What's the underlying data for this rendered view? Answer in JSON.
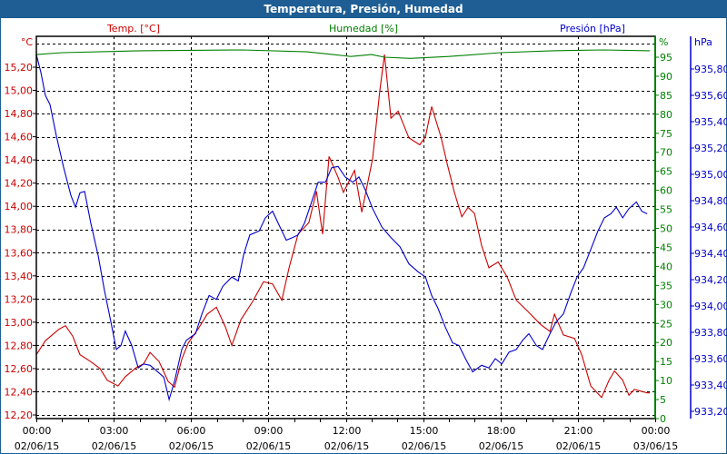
{
  "window": {
    "title": "Temperatura, Presión, Humedad"
  },
  "colors": {
    "temp": "#cc0000",
    "humidity": "#008000",
    "pressure": "#0000cc",
    "titlebar": "#1e5e94"
  },
  "chart_data": {
    "type": "line",
    "title": "Temperatura, Presión, Humedad",
    "series_labels": {
      "temp": "Temp. [°C]",
      "humidity": "Humedad [%]",
      "pressure": "Presión [hPa]"
    },
    "unit_labels": {
      "temp": "°C",
      "humidity": "%",
      "pressure": "hPa"
    },
    "x_ticks": [
      {
        "hour": 0,
        "time": "00:00",
        "date": "02/06/15"
      },
      {
        "hour": 3,
        "time": "03:00",
        "date": "02/06/15"
      },
      {
        "hour": 6,
        "time": "06:00",
        "date": "02/06/15"
      },
      {
        "hour": 9,
        "time": "09:00",
        "date": "02/06/15"
      },
      {
        "hour": 12,
        "time": "12:00",
        "date": "02/06/15"
      },
      {
        "hour": 15,
        "time": "15:00",
        "date": "02/06/15"
      },
      {
        "hour": 18,
        "time": "18:00",
        "date": "02/06/15"
      },
      {
        "hour": 21,
        "time": "21:00",
        "date": "02/06/15"
      },
      {
        "hour": 24,
        "time": "00:00",
        "date": "03/06/15"
      }
    ],
    "xlim": [
      0,
      24
    ],
    "temp_axis": {
      "ylim": [
        12.17,
        15.47
      ],
      "ticks": [
        12.2,
        12.4,
        12.6,
        12.8,
        13.0,
        13.2,
        13.4,
        13.6,
        13.8,
        14.0,
        14.2,
        14.4,
        14.6,
        14.8,
        15.0,
        15.2
      ],
      "tick_labels": [
        "12,20",
        "12,40",
        "12,60",
        "12,80",
        "13,00",
        "13,20",
        "13,40",
        "13,60",
        "13,80",
        "14,00",
        "14,20",
        "14,40",
        "14,60",
        "14,80",
        "15,00",
        "15,20"
      ]
    },
    "humidity_axis": {
      "ylim": [
        0,
        95.2
      ],
      "ticks": [
        0,
        5,
        10,
        15,
        20,
        25,
        30,
        35,
        40,
        45,
        50,
        55,
        60,
        65,
        70,
        75,
        80,
        85,
        90,
        95
      ],
      "tick_labels": [
        "0",
        "5",
        "10",
        "15",
        "20",
        "25",
        "30",
        "35",
        "40",
        "45",
        "50",
        "55",
        "60",
        "65",
        "70",
        "75",
        "80",
        "85",
        "90",
        "95"
      ]
    },
    "pressure_axis": {
      "ylim": [
        933.16,
        935.91
      ],
      "ticks": [
        933.2,
        933.4,
        933.6,
        933.8,
        934.0,
        934.2,
        934.4,
        934.6,
        934.8,
        935.0,
        935.2,
        935.4,
        935.6,
        935.8
      ],
      "tick_labels": [
        "933,20",
        "933,40",
        "933,60",
        "933,80",
        "934,00",
        "934,20",
        "934,40",
        "934,60",
        "934,80",
        "935,00",
        "935,20",
        "935,40",
        "935,60",
        "935,80"
      ]
    },
    "grid": true,
    "series": [
      {
        "name": "Temp. [°C]",
        "axis": "temp",
        "points": [
          [
            0,
            12.72
          ],
          [
            0.35,
            12.84
          ],
          [
            0.88,
            12.94
          ],
          [
            1.13,
            12.97
          ],
          [
            1.41,
            12.88
          ],
          [
            1.69,
            12.72
          ],
          [
            2.11,
            12.66
          ],
          [
            2.47,
            12.6
          ],
          [
            2.75,
            12.5
          ],
          [
            3.17,
            12.45
          ],
          [
            3.45,
            12.53
          ],
          [
            3.88,
            12.61
          ],
          [
            4.16,
            12.64
          ],
          [
            4.41,
            12.74
          ],
          [
            4.76,
            12.66
          ],
          [
            5.11,
            12.49
          ],
          [
            5.36,
            12.44
          ],
          [
            5.64,
            12.68
          ],
          [
            5.89,
            12.82
          ],
          [
            6.27,
            12.94
          ],
          [
            6.63,
            13.07
          ],
          [
            6.98,
            13.13
          ],
          [
            7.33,
            12.96
          ],
          [
            7.58,
            12.8
          ],
          [
            7.93,
            13.02
          ],
          [
            8.39,
            13.18
          ],
          [
            8.81,
            13.35
          ],
          [
            9.16,
            13.33
          ],
          [
            9.52,
            13.19
          ],
          [
            9.8,
            13.47
          ],
          [
            10.15,
            13.76
          ],
          [
            10.57,
            13.86
          ],
          [
            10.86,
            14.13
          ],
          [
            11.1,
            13.76
          ],
          [
            11.35,
            14.43
          ],
          [
            11.7,
            14.25
          ],
          [
            11.91,
            14.12
          ],
          [
            12.34,
            14.31
          ],
          [
            12.62,
            13.95
          ],
          [
            13.04,
            14.41
          ],
          [
            13.32,
            15.0
          ],
          [
            13.5,
            15.31
          ],
          [
            13.75,
            14.76
          ],
          [
            14.03,
            14.82
          ],
          [
            14.45,
            14.59
          ],
          [
            14.87,
            14.53
          ],
          [
            15.09,
            14.6
          ],
          [
            15.33,
            14.86
          ],
          [
            15.69,
            14.6
          ],
          [
            15.93,
            14.37
          ],
          [
            16.21,
            14.12
          ],
          [
            16.5,
            13.91
          ],
          [
            16.74,
            13.99
          ],
          [
            16.99,
            13.94
          ],
          [
            17.27,
            13.66
          ],
          [
            17.55,
            13.47
          ],
          [
            17.91,
            13.52
          ],
          [
            18.26,
            13.39
          ],
          [
            18.61,
            13.19
          ],
          [
            19.03,
            13.1
          ],
          [
            19.56,
            12.98
          ],
          [
            19.92,
            12.92
          ],
          [
            20.09,
            13.07
          ],
          [
            20.44,
            12.89
          ],
          [
            20.87,
            12.86
          ],
          [
            21.15,
            12.72
          ],
          [
            21.5,
            12.45
          ],
          [
            21.92,
            12.35
          ],
          [
            22.21,
            12.5
          ],
          [
            22.42,
            12.58
          ],
          [
            22.74,
            12.5
          ],
          [
            22.98,
            12.37
          ],
          [
            23.19,
            12.42
          ],
          [
            23.69,
            12.39
          ],
          [
            23.79,
            12.39
          ]
        ]
      },
      {
        "name": "Humedad [%]",
        "axis": "humidity",
        "points": [
          [
            0,
            95.7
          ],
          [
            1,
            96.2
          ],
          [
            4,
            96.7
          ],
          [
            8,
            96.9
          ],
          [
            10.5,
            96.4
          ],
          [
            11.5,
            95.7
          ],
          [
            12.2,
            95.2
          ],
          [
            13,
            95.7
          ],
          [
            13.5,
            95.0
          ],
          [
            14.5,
            94.7
          ],
          [
            16,
            95.2
          ],
          [
            18,
            96.2
          ],
          [
            20,
            96.7
          ],
          [
            22,
            96.9
          ],
          [
            23.8,
            96.7
          ]
        ]
      },
      {
        "name": "Presión [hPa]",
        "axis": "pressure",
        "points": [
          [
            0,
            935.91
          ],
          [
            0.18,
            935.77
          ],
          [
            0.35,
            935.6
          ],
          [
            0.53,
            935.53
          ],
          [
            0.78,
            935.29
          ],
          [
            1.06,
            935.05
          ],
          [
            1.34,
            934.84
          ],
          [
            1.52,
            934.75
          ],
          [
            1.69,
            934.86
          ],
          [
            1.87,
            934.87
          ],
          [
            2.11,
            934.63
          ],
          [
            2.4,
            934.38
          ],
          [
            2.64,
            934.12
          ],
          [
            2.89,
            933.88
          ],
          [
            3.1,
            933.67
          ],
          [
            3.28,
            933.7
          ],
          [
            3.45,
            933.81
          ],
          [
            3.7,
            933.7
          ],
          [
            3.95,
            933.53
          ],
          [
            4.16,
            933.56
          ],
          [
            4.41,
            933.55
          ],
          [
            4.65,
            933.51
          ],
          [
            4.94,
            933.46
          ],
          [
            5.15,
            933.29
          ],
          [
            5.36,
            933.43
          ],
          [
            5.64,
            933.67
          ],
          [
            5.82,
            933.74
          ],
          [
            6.17,
            933.79
          ],
          [
            6.42,
            933.94
          ],
          [
            6.7,
            934.08
          ],
          [
            6.98,
            934.05
          ],
          [
            7.23,
            934.15
          ],
          [
            7.58,
            934.22
          ],
          [
            7.83,
            934.19
          ],
          [
            8.04,
            934.39
          ],
          [
            8.28,
            934.54
          ],
          [
            8.64,
            934.57
          ],
          [
            8.88,
            934.67
          ],
          [
            9.16,
            934.72
          ],
          [
            9.45,
            934.6
          ],
          [
            9.69,
            934.5
          ],
          [
            9.94,
            934.52
          ],
          [
            10.15,
            934.54
          ],
          [
            10.4,
            934.63
          ],
          [
            10.64,
            934.77
          ],
          [
            10.93,
            934.94
          ],
          [
            11.21,
            934.94
          ],
          [
            11.45,
            935.05
          ],
          [
            11.7,
            935.06
          ],
          [
            11.98,
            934.98
          ],
          [
            12.27,
            934.94
          ],
          [
            12.51,
            934.98
          ],
          [
            12.76,
            934.88
          ],
          [
            13.04,
            934.74
          ],
          [
            13.4,
            934.6
          ],
          [
            13.75,
            934.52
          ],
          [
            14.1,
            934.45
          ],
          [
            14.45,
            934.32
          ],
          [
            14.8,
            934.26
          ],
          [
            15.09,
            934.22
          ],
          [
            15.33,
            934.08
          ],
          [
            15.58,
            933.98
          ],
          [
            15.86,
            933.84
          ],
          [
            16.14,
            933.72
          ],
          [
            16.39,
            933.7
          ],
          [
            16.64,
            933.6
          ],
          [
            16.92,
            933.5
          ],
          [
            17.27,
            933.55
          ],
          [
            17.55,
            933.53
          ],
          [
            17.8,
            933.6
          ],
          [
            18.05,
            933.56
          ],
          [
            18.33,
            933.65
          ],
          [
            18.61,
            933.67
          ],
          [
            18.86,
            933.74
          ],
          [
            19.1,
            933.79
          ],
          [
            19.39,
            933.7
          ],
          [
            19.63,
            933.67
          ],
          [
            19.92,
            933.79
          ],
          [
            20.16,
            933.88
          ],
          [
            20.44,
            933.94
          ],
          [
            20.73,
            934.1
          ],
          [
            20.97,
            934.22
          ],
          [
            21.22,
            934.29
          ],
          [
            21.5,
            934.43
          ],
          [
            21.78,
            934.57
          ],
          [
            22.03,
            934.67
          ],
          [
            22.28,
            934.7
          ],
          [
            22.49,
            934.75
          ],
          [
            22.74,
            934.67
          ],
          [
            22.98,
            934.74
          ],
          [
            23.27,
            934.79
          ],
          [
            23.48,
            934.72
          ],
          [
            23.69,
            934.7
          ]
        ]
      }
    ]
  }
}
